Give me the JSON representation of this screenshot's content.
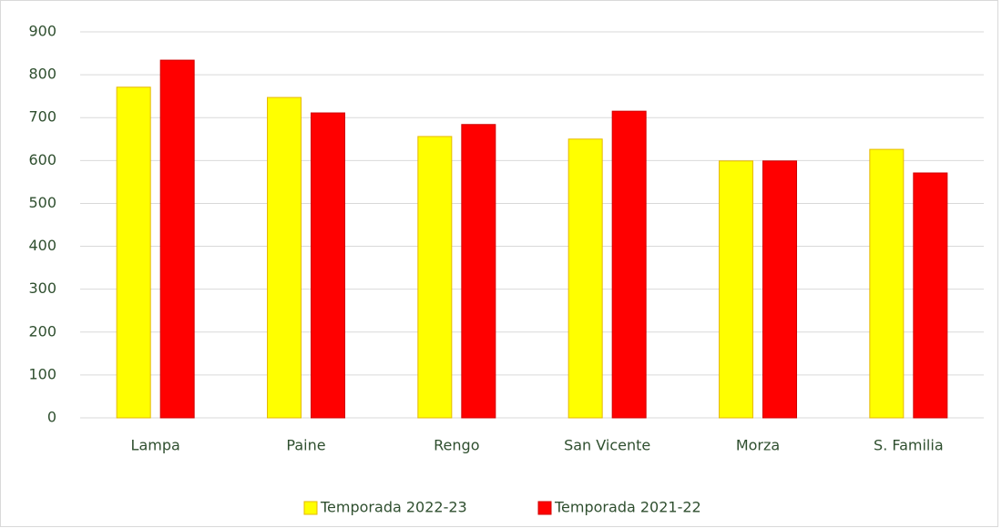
{
  "chart_data": {
    "type": "bar",
    "categories": [
      "Lampa",
      "Paine",
      "Rengo",
      "San Vicente",
      "Morza",
      "S. Familia"
    ],
    "series": [
      {
        "name": "Temporada 2022-23",
        "color": "#ffff00",
        "values": [
          771,
          747,
          656,
          650,
          599,
          626
        ]
      },
      {
        "name": "Temporada 2021-22",
        "color": "#ff0000",
        "values": [
          834,
          711,
          684,
          715,
          599,
          571
        ]
      }
    ],
    "ylim": [
      0,
      900
    ],
    "yticks": [
      0,
      100,
      200,
      300,
      400,
      500,
      600,
      700,
      800,
      900
    ],
    "grid": true,
    "legend": "bottom"
  }
}
